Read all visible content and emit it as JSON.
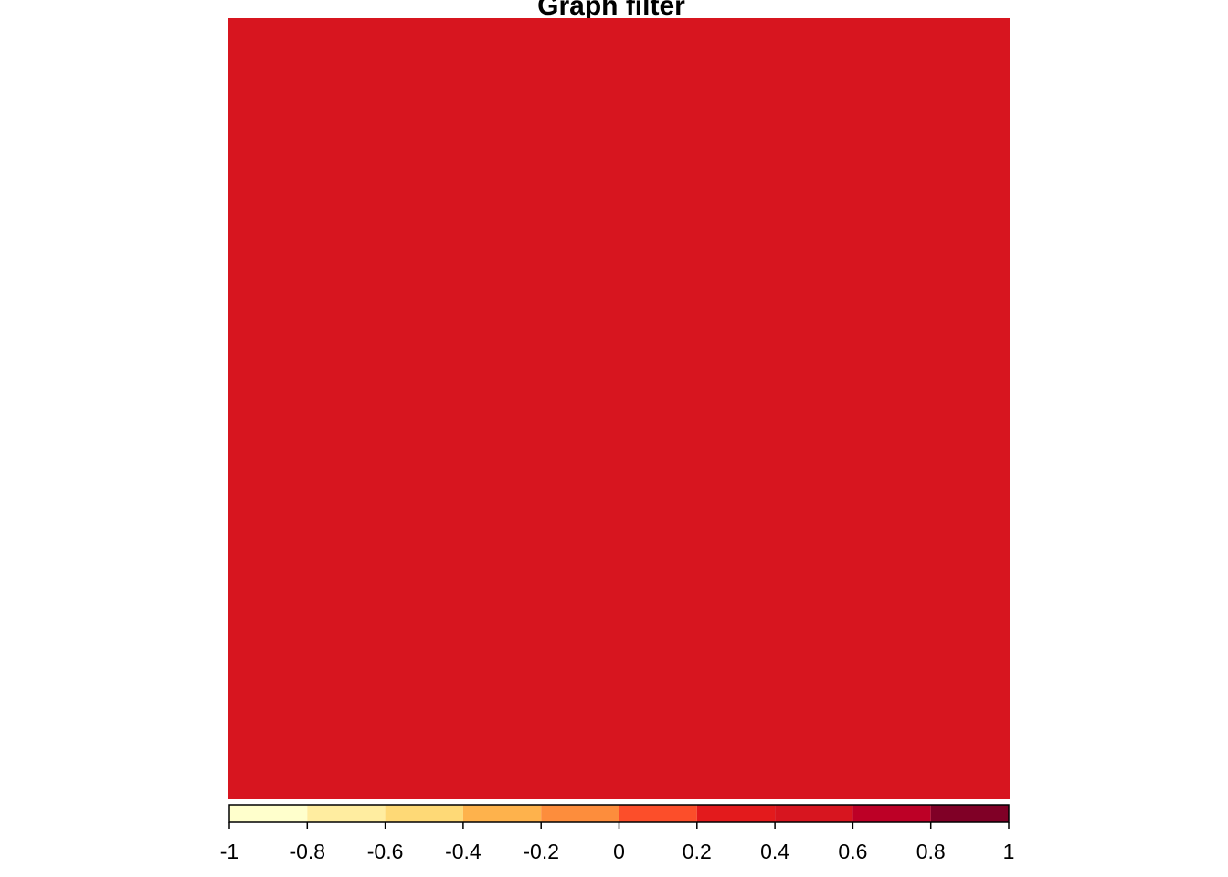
{
  "chart_data": {
    "type": "heatmap",
    "title": "Graph filter",
    "cells": [
      [
        0.5
      ]
    ],
    "cell_color": "#d7151f",
    "colorbar": {
      "range": [
        -1,
        1
      ],
      "breaks": [
        -1,
        -0.8,
        -0.6,
        -0.4,
        -0.2,
        0,
        0.2,
        0.4,
        0.6,
        0.8,
        1
      ],
      "tick_labels": [
        "-1",
        "-0.8",
        "-0.6",
        "-0.4",
        "-0.2",
        "0",
        "0.2",
        "0.4",
        "0.6",
        "0.8",
        "1"
      ],
      "colors": [
        "#ffffcc",
        "#ffeda0",
        "#fed976",
        "#feb24c",
        "#fd8d3c",
        "#fc4e2a",
        "#e31a1c",
        "#d7151f",
        "#bd0026",
        "#800026"
      ],
      "placement": "bottom"
    },
    "grid": false
  }
}
